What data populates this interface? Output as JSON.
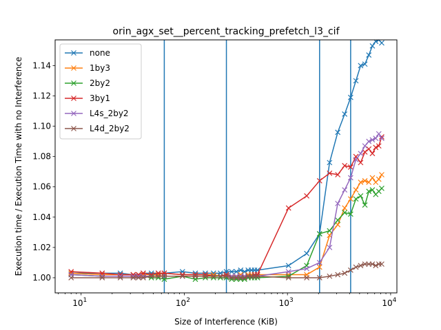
{
  "chart_data": {
    "type": "line",
    "title": "orin_agx_set__percent_tracking_prefetch_l3_cif",
    "xlabel": "Size of Interference (KiB)",
    "ylabel": "Execution time / Execution Time with no Interference",
    "xscale": "log",
    "xlim": [
      5.6,
      11500
    ],
    "ylim": [
      0.99,
      1.157
    ],
    "x_ticks": [
      {
        "value": 10,
        "base": "10",
        "exp": "1"
      },
      {
        "value": 100,
        "base": "10",
        "exp": "2"
      },
      {
        "value": 1000,
        "base": "10",
        "exp": "3"
      },
      {
        "value": 10000,
        "base": "10",
        "exp": "4"
      }
    ],
    "y_ticks": [
      1.0,
      1.02,
      1.04,
      1.06,
      1.08,
      1.1,
      1.12,
      1.14
    ],
    "y_tick_labels": [
      "1.00",
      "1.02",
      "1.04",
      "1.06",
      "1.08",
      "1.10",
      "1.12",
      "1.14"
    ],
    "vlines": [
      64,
      256,
      2048,
      4096
    ],
    "vline_color": "#1f77b4",
    "grid": false,
    "legend_position": "upper-left",
    "x": [
      8,
      16,
      24,
      32,
      36,
      40,
      48,
      56,
      64,
      96,
      128,
      160,
      192,
      224,
      256,
      288,
      320,
      352,
      384,
      416,
      448,
      480,
      512,
      1024,
      1536,
      2048,
      2560,
      3072,
      3584,
      4096,
      4608,
      5120,
      5632,
      6144,
      6656,
      7168,
      7680,
      8192
    ],
    "series": [
      {
        "name": "none",
        "color": "#1f77b4",
        "values": [
          1.003,
          1.003,
          1.003,
          1.002,
          1.002,
          1.003,
          1.003,
          1.003,
          1.003,
          1.004,
          1.003,
          1.003,
          1.003,
          1.003,
          1.004,
          1.004,
          1.004,
          1.005,
          1.004,
          1.005,
          1.005,
          1.005,
          1.005,
          1.008,
          1.016,
          1.029,
          1.076,
          1.096,
          1.108,
          1.119,
          1.13,
          1.14,
          1.141,
          1.147,
          1.153,
          1.156,
          1.157,
          1.155
        ]
      },
      {
        "name": "1by3",
        "color": "#ff7f0e",
        "values": [
          1.003,
          1.002,
          1.002,
          1.002,
          1.002,
          1.002,
          1.002,
          1.002,
          1.003,
          1.002,
          1.002,
          1.002,
          1.002,
          1.001,
          1.002,
          1.001,
          1.001,
          1.002,
          1.001,
          1.002,
          1.002,
          1.002,
          1.002,
          1.002,
          1.002,
          1.007,
          1.028,
          1.035,
          1.046,
          1.052,
          1.058,
          1.063,
          1.064,
          1.063,
          1.066,
          1.063,
          1.065,
          1.068
        ]
      },
      {
        "name": "2by2",
        "color": "#2ca02c",
        "values": [
          1.002,
          1.001,
          1.001,
          1.001,
          1.001,
          1.001,
          1.0,
          1.0,
          0.999,
          1.001,
          0.999,
          1.0,
          1.0,
          1.0,
          1.0,
          0.999,
          0.999,
          0.999,
          0.999,
          1.0,
          1.0,
          1.0,
          1.0,
          1.001,
          1.008,
          1.029,
          1.031,
          1.038,
          1.043,
          1.042,
          1.052,
          1.054,
          1.048,
          1.057,
          1.058,
          1.055,
          1.057,
          1.059
        ]
      },
      {
        "name": "3by1",
        "color": "#d62728",
        "values": [
          1.004,
          1.003,
          1.002,
          1.002,
          1.002,
          1.003,
          1.002,
          1.003,
          1.003,
          1.002,
          1.002,
          1.002,
          1.001,
          1.001,
          1.002,
          1.001,
          1.001,
          1.001,
          1.001,
          1.001,
          1.001,
          1.002,
          1.002,
          1.046,
          1.054,
          1.064,
          1.069,
          1.068,
          1.074,
          1.073,
          1.08,
          1.076,
          1.083,
          1.085,
          1.082,
          1.086,
          1.087,
          1.093
        ]
      },
      {
        "name": "L4s_2by2",
        "color": "#9467bd",
        "values": [
          1.002,
          1.001,
          1.001,
          1.001,
          1.001,
          1.001,
          1.001,
          1.001,
          1.001,
          1.001,
          1.001,
          1.001,
          1.001,
          1.001,
          1.001,
          1.001,
          1.001,
          1.001,
          1.001,
          1.001,
          1.001,
          1.001,
          1.001,
          1.004,
          1.006,
          1.01,
          1.02,
          1.049,
          1.058,
          1.066,
          1.078,
          1.082,
          1.087,
          1.09,
          1.091,
          1.092,
          1.095,
          1.092
        ]
      },
      {
        "name": "L4d_2by2",
        "color": "#8c564b",
        "values": [
          1.0,
          1.0,
          1.0,
          1.0,
          1.0,
          1.0,
          1.001,
          1.001,
          1.001,
          1.001,
          1.001,
          1.001,
          1.001,
          1.001,
          1.001,
          1.0,
          1.0,
          1.0,
          1.0,
          1.001,
          1.001,
          1.001,
          1.001,
          1.0,
          1.0,
          1.0,
          1.001,
          1.002,
          1.003,
          1.005,
          1.007,
          1.008,
          1.009,
          1.009,
          1.009,
          1.008,
          1.009,
          1.009
        ]
      }
    ]
  }
}
